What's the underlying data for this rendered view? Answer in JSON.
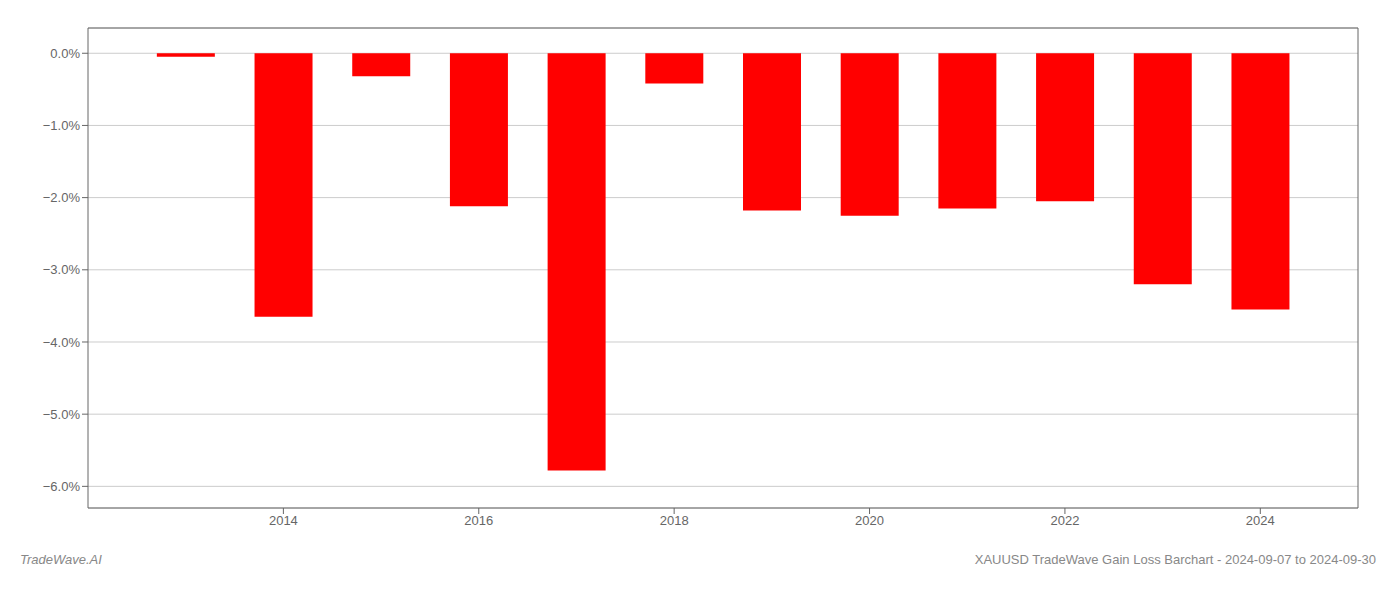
{
  "chart_data": {
    "type": "bar",
    "x": [
      2013,
      2014,
      2015,
      2016,
      2017,
      2018,
      2019,
      2020,
      2021,
      2022,
      2023,
      2024
    ],
    "values": [
      -0.05,
      -3.65,
      -0.32,
      -2.12,
      -5.78,
      -0.42,
      -2.18,
      -2.25,
      -2.15,
      -2.05,
      -3.2,
      -3.55
    ],
    "color": "#ff0000",
    "xlim": [
      2012,
      2025
    ],
    "xticks": [
      2014,
      2016,
      2018,
      2020,
      2022,
      2024
    ],
    "ylim": [
      -6.3,
      0.35
    ],
    "yticks": [
      {
        "value": 0.0,
        "label": "0.0%"
      },
      {
        "value": -1.0,
        "label": "−1.0%"
      },
      {
        "value": -2.0,
        "label": "−2.0%"
      },
      {
        "value": -3.0,
        "label": "−3.0%"
      },
      {
        "value": -4.0,
        "label": "−4.0%"
      },
      {
        "value": -5.0,
        "label": "−5.0%"
      },
      {
        "value": -6.0,
        "label": "−6.0%"
      }
    ],
    "grid": true,
    "annotations": [
      "TradeWave.AI",
      "XAUUSD TradeWave Gain Loss Barchart - 2024-09-07 to 2024-09-30"
    ]
  }
}
